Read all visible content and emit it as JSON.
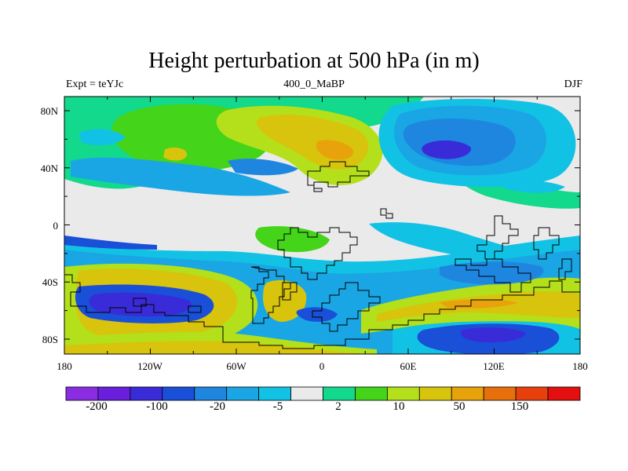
{
  "title": "Height perturbation at 500 hPa (in m)",
  "subtitle_left": "Expt = teYJc",
  "subtitle_center": "400_0_MaBP",
  "subtitle_right": "DJF",
  "lat_labels": [
    "80N",
    "40N",
    "0",
    "40S",
    "80S"
  ],
  "lon_labels": [
    "180",
    "120W",
    "60W",
    "0",
    "60E",
    "120E",
    "180"
  ],
  "colorbar": {
    "labels": [
      "-200",
      "-100",
      "-20",
      "-5",
      "2",
      "10",
      "50",
      "150"
    ],
    "colors": [
      "#8b2be2",
      "#6a1fdc",
      "#3a2bd8",
      "#1a4fd8",
      "#1f86e0",
      "#1aa6e4",
      "#12c2e4",
      "#eaeaea",
      "#12d98c",
      "#44d41a",
      "#b3e01a",
      "#d8c40c",
      "#e8a20c",
      "#e8700c",
      "#e8400c",
      "#e41010"
    ]
  },
  "colors": {
    "land_outline": "#000000",
    "zero_band": "#eaeaea"
  }
}
